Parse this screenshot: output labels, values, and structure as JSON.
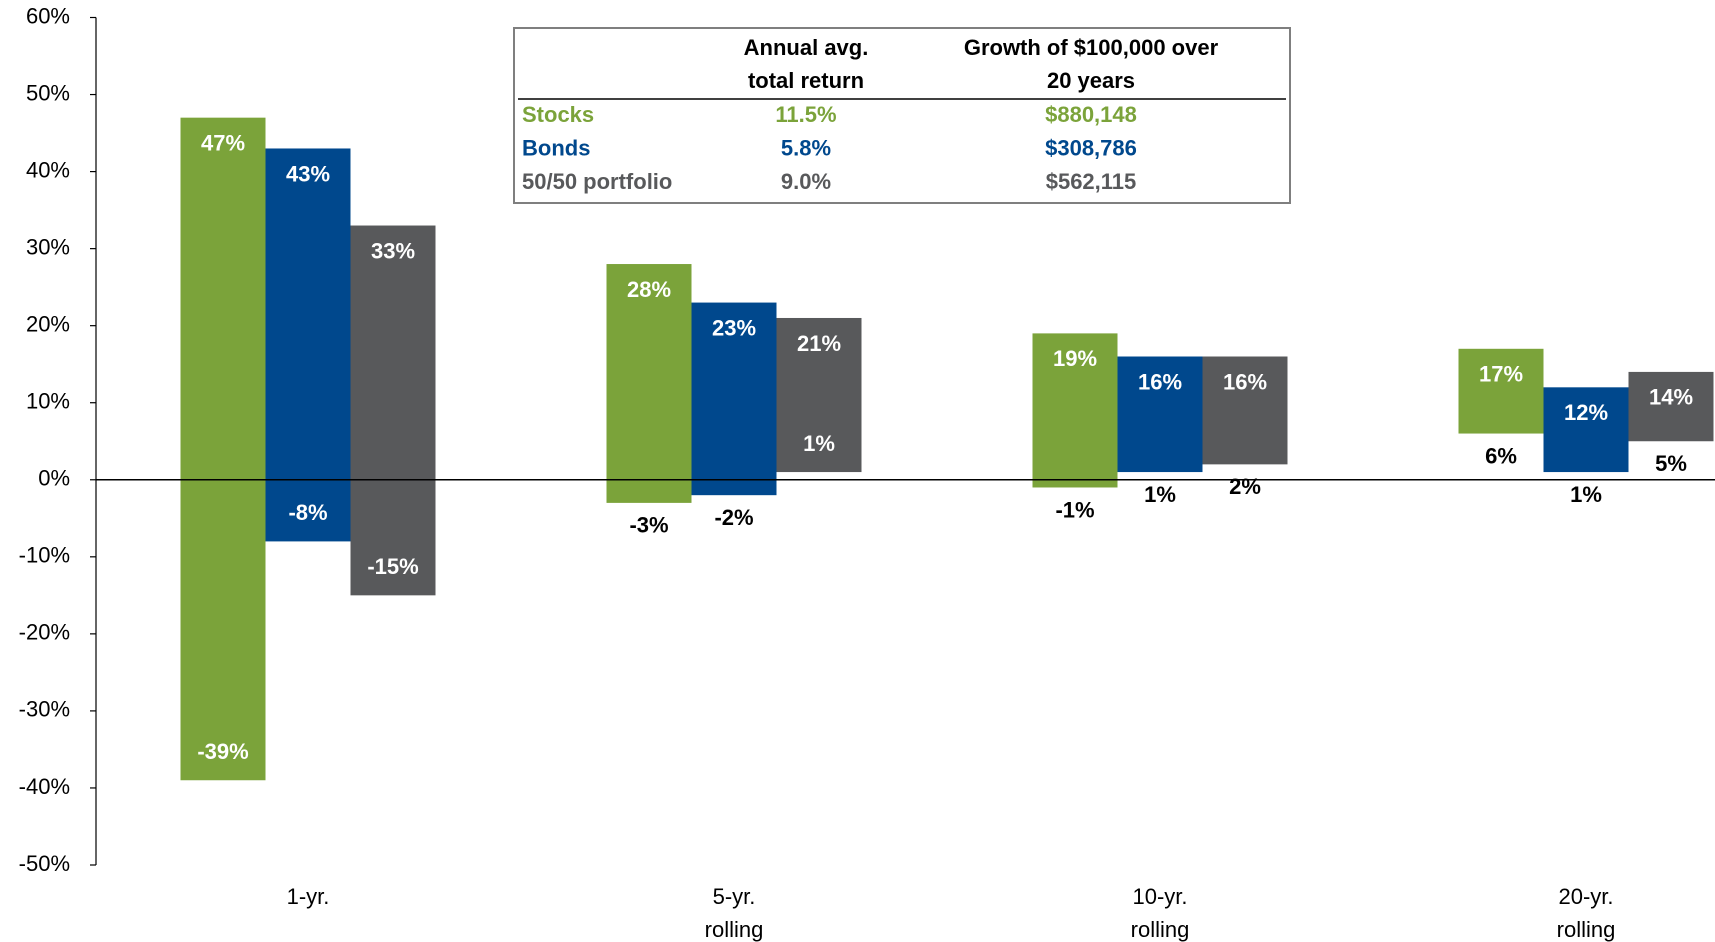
{
  "chart_data": {
    "type": "floating_bar",
    "categories": [
      "1-yr.",
      "5-yr.\nrolling",
      "10-yr.\nrolling",
      "20-yr.\nrolling"
    ],
    "series": [
      {
        "name": "Stocks",
        "color": "#7ba33a",
        "high": [
          47,
          28,
          19,
          17
        ],
        "low": [
          -39,
          -3,
          -1,
          6
        ],
        "high_labels": [
          "47%",
          "28%",
          "19%",
          "17%"
        ],
        "low_labels": [
          "-39%",
          "-3%",
          "-1%",
          "6%"
        ],
        "table_values": [
          "11.5%",
          "$880,148"
        ]
      },
      {
        "name": "Bonds",
        "color": "#00488d",
        "high": [
          43,
          23,
          16,
          12
        ],
        "low": [
          -8,
          -2,
          1,
          1
        ],
        "high_labels": [
          "43%",
          "23%",
          "16%",
          "12%"
        ],
        "low_labels": [
          "-8%",
          "-2%",
          "1%",
          "1%"
        ],
        "table_values": [
          "5.8%",
          "$308,786"
        ]
      },
      {
        "name": "50/50 portfolio",
        "color": "#58595b",
        "high": [
          33,
          21,
          16,
          14
        ],
        "low": [
          -15,
          1,
          2,
          5
        ],
        "high_labels": [
          "33%",
          "21%",
          "16%",
          "14%"
        ],
        "low_labels": [
          "-15%",
          "1%",
          "2%",
          "5%"
        ],
        "table_values": [
          "9.0%",
          "$562,115"
        ]
      }
    ],
    "table_columns": [
      "Annual avg.\ntotal return",
      "Growth of $100,000 over\n20 years"
    ],
    "ylim": [
      -50,
      60
    ],
    "yticks": [
      {
        "value": -50,
        "label": "-50%"
      },
      {
        "value": -40,
        "label": "-40%"
      },
      {
        "value": -30,
        "label": "-30%"
      },
      {
        "value": -20,
        "label": "-20%"
      },
      {
        "value": -10,
        "label": "-10%"
      },
      {
        "value": 0,
        "label": "0%"
      },
      {
        "value": 10,
        "label": "10%"
      },
      {
        "value": 20,
        "label": "20%"
      },
      {
        "value": 30,
        "label": "30%"
      },
      {
        "value": 40,
        "label": "40%"
      },
      {
        "value": 50,
        "label": "50%"
      },
      {
        "value": 60,
        "label": "60%"
      }
    ]
  }
}
